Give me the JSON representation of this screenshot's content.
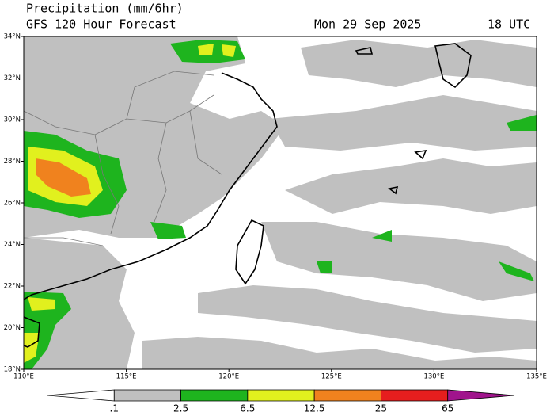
{
  "header": {
    "title": "Precipitation (mm/6hr)",
    "subtitle": "GFS 120 Hour Forecast",
    "date": "Mon 29 Sep 2025",
    "time": "18 UTC"
  },
  "map": {
    "lat_labels": [
      "34°N",
      "32°N",
      "30°N",
      "28°N",
      "26°N",
      "24°N",
      "22°N",
      "20°N",
      "18°N"
    ],
    "lon_labels": [
      "110°E",
      "115°E",
      "120°E",
      "125°E",
      "130°E",
      "135°E"
    ]
  },
  "legend": {
    "labels": [
      ".1",
      "2.5",
      "6.5",
      "12.5",
      "25",
      "65"
    ],
    "colors": [
      "#ffffff",
      "#c0c0c0",
      "#1eb41e",
      "#e1f01e",
      "#f0821e",
      "#e61e1e",
      "#a0148c"
    ]
  }
}
